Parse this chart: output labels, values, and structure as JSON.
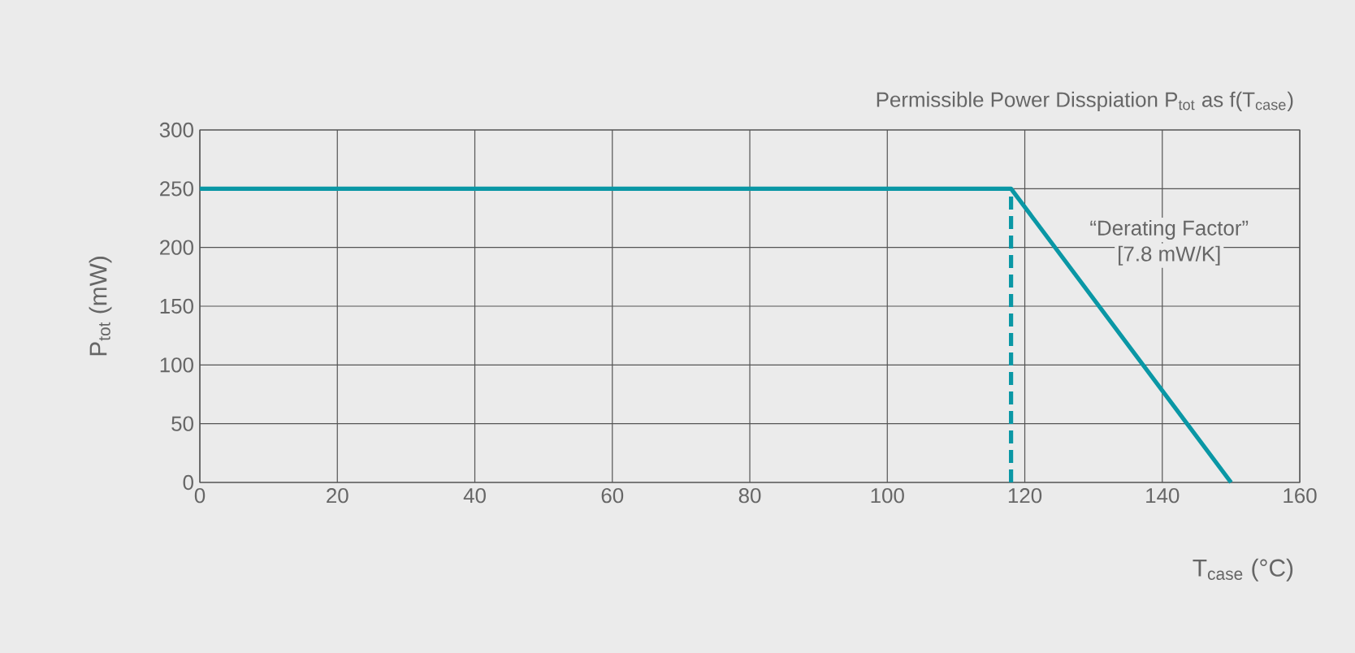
{
  "chart_data": {
    "type": "line",
    "title": "Permissible Power Disspiation P$_{tot}$ as f(T$_{case}$)",
    "xlabel": "T$_{case}$ (°C)",
    "ylabel": "P$_{tot}$ (mW)",
    "xlim": [
      0,
      160
    ],
    "xticks": [
      0,
      20,
      40,
      60,
      80,
      100,
      120,
      140,
      160
    ],
    "ylim": [
      0,
      300
    ],
    "yticks": [
      0,
      50,
      100,
      150,
      200,
      250,
      300
    ],
    "grid": true,
    "marker": "none",
    "series": [
      {
        "color": "#0a97a5",
        "x": [
          0,
          118,
          150
        ],
        "values": [
          250,
          250,
          0
        ],
        "line_style": "solid"
      },
      {
        "color": "#0a97a5",
        "x": [
          118,
          118
        ],
        "values": [
          0,
          250
        ],
        "line_style": "dashed"
      }
    ],
    "annotations": [
      "“Derating Factor”",
      "[7.8 mW/K]"
    ]
  }
}
